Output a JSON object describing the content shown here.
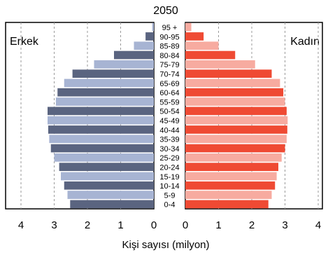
{
  "chart_data": {
    "type": "bar",
    "title": "2050",
    "xlabel": "Kişi sayısı (milyon)",
    "ylabel": "",
    "categories": [
      "0-4",
      "5-9",
      "10-14",
      "15-19",
      "20-24",
      "25-29",
      "30-34",
      "35-39",
      "40-44",
      "45-49",
      "50-54",
      "55-59",
      "60-64",
      "65-69",
      "70-74",
      "75-79",
      "80-84",
      "85-89",
      "90-95",
      "95 +"
    ],
    "series": [
      {
        "name": "Erkek",
        "values": [
          2.52,
          2.6,
          2.7,
          2.8,
          2.85,
          3.0,
          3.1,
          3.15,
          3.18,
          3.2,
          3.2,
          2.95,
          2.9,
          2.7,
          2.45,
          1.8,
          1.2,
          0.6,
          0.25,
          0.05
        ]
      },
      {
        "name": "Kadın",
        "values": [
          2.5,
          2.6,
          2.7,
          2.75,
          2.8,
          2.9,
          3.0,
          3.05,
          3.07,
          3.08,
          3.05,
          3.0,
          2.95,
          2.85,
          2.6,
          2.1,
          1.5,
          1.0,
          0.55,
          0.18
        ]
      }
    ],
    "xticks_left": [
      "4",
      "3",
      "2",
      "1",
      "0"
    ],
    "xticks_right": [
      "0",
      "1",
      "2",
      "3",
      "4"
    ],
    "xlim": [
      0,
      4
    ],
    "grid": true,
    "colors": {
      "male_dark": "#5a6480",
      "male_light": "#a7b4d3",
      "female_dark": "#ef4a33",
      "female_light": "#f7aba0",
      "grid": "#9a9a9a"
    }
  }
}
